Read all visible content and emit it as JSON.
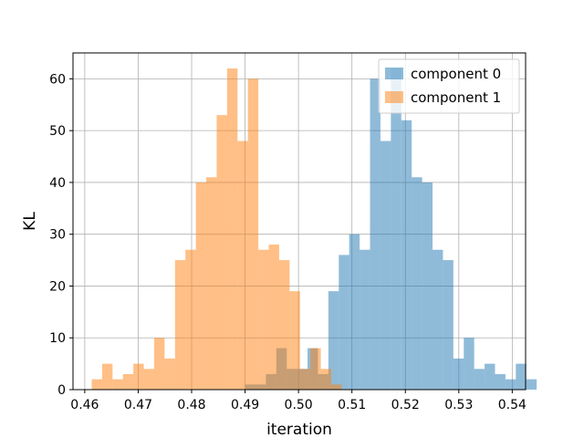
{
  "chart_data": {
    "type": "bar",
    "title": "",
    "xlabel": "iteration",
    "ylabel": "KL",
    "xlim": [
      0.4578,
      0.5425
    ],
    "ylim": [
      0,
      65
    ],
    "xticks": [
      0.46,
      0.47,
      0.48,
      0.49,
      0.5,
      0.51,
      0.52,
      0.53,
      0.54
    ],
    "xtick_labels": [
      "0.46",
      "0.47",
      "0.48",
      "0.49",
      "0.50",
      "0.51",
      "0.52",
      "0.53",
      "0.54"
    ],
    "yticks": [
      0,
      10,
      20,
      30,
      40,
      50,
      60
    ],
    "ytick_labels": [
      "0",
      "10",
      "20",
      "30",
      "40",
      "50",
      "60"
    ],
    "grid": true,
    "legend": "top-right",
    "series": [
      {
        "name": "component 0",
        "color": "#1f77b4",
        "alpha": 0.5,
        "bin_start": 0.49,
        "bin_width": 0.001949,
        "values": [
          1,
          1,
          3,
          8,
          4,
          4,
          8,
          3,
          19,
          26,
          30,
          27,
          60,
          48,
          62,
          52,
          41,
          40,
          27,
          25,
          6,
          10,
          4,
          5,
          3,
          2,
          5,
          2
        ]
      },
      {
        "name": "component 1",
        "color": "#ff7f0e",
        "alpha": 0.5,
        "bin_start": 0.4613,
        "bin_width": 0.001949,
        "values": [
          2,
          5,
          2,
          3,
          5,
          4,
          10,
          6,
          25,
          27,
          40,
          41,
          53,
          62,
          48,
          60,
          27,
          28,
          25,
          19,
          4,
          8,
          4,
          1
        ]
      }
    ]
  }
}
